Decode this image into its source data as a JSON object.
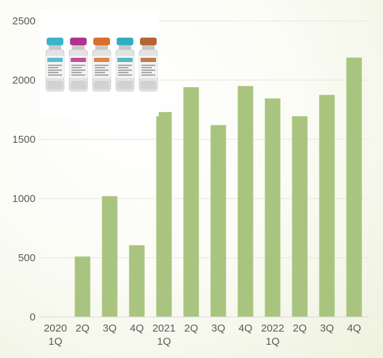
{
  "chart_data": {
    "type": "bar",
    "title": "",
    "xlabel": "",
    "ylabel": "",
    "categories": [
      [
        "2020",
        "1Q"
      ],
      [
        "2Q"
      ],
      [
        "3Q"
      ],
      [
        "4Q"
      ],
      [
        "2021",
        "1Q"
      ],
      [
        "2Q"
      ],
      [
        "3Q"
      ],
      [
        "4Q"
      ],
      [
        "2022",
        "1Q"
      ],
      [
        "2Q"
      ],
      [
        "3Q"
      ],
      [
        "4Q"
      ]
    ],
    "values": [
      0,
      510,
      1020,
      605,
      1730,
      1940,
      1620,
      1950,
      1845,
      1695,
      1875,
      2190
    ],
    "ylim": [
      0,
      2500
    ],
    "yticks": [
      0,
      500,
      1000,
      1500,
      2000,
      2500
    ],
    "grid": true,
    "bar_color": "#a9c47f"
  },
  "inset": {
    "content": "vaccine-vials",
    "vial_cap_colors": [
      "#3bb3c8",
      "#b2338f",
      "#d96f2b",
      "#35adc0",
      "#b5652f"
    ]
  }
}
